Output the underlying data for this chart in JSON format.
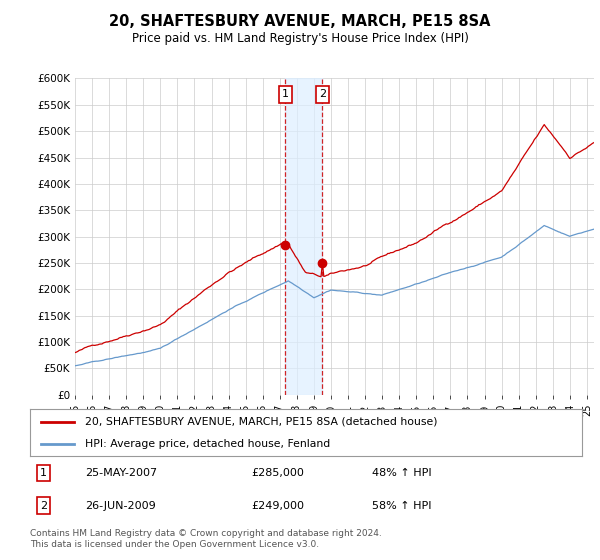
{
  "title": "20, SHAFTESBURY AVENUE, MARCH, PE15 8SA",
  "subtitle": "Price paid vs. HM Land Registry's House Price Index (HPI)",
  "ylabel_ticks": [
    "£0",
    "£50K",
    "£100K",
    "£150K",
    "£200K",
    "£250K",
    "£300K",
    "£350K",
    "£400K",
    "£450K",
    "£500K",
    "£550K",
    "£600K"
  ],
  "ytick_values": [
    0,
    50000,
    100000,
    150000,
    200000,
    250000,
    300000,
    350000,
    400000,
    450000,
    500000,
    550000,
    600000
  ],
  "sale1_date_idx": 148,
  "sale1_price": 285000,
  "sale1_label": "1",
  "sale2_date_idx": 174,
  "sale2_price": 249000,
  "sale2_label": "2",
  "line1_color": "#cc0000",
  "line2_color": "#6699cc",
  "legend1": "20, SHAFTESBURY AVENUE, MARCH, PE15 8SA (detached house)",
  "legend2": "HPI: Average price, detached house, Fenland",
  "footer": "Contains HM Land Registry data © Crown copyright and database right 2024.\nThis data is licensed under the Open Government Licence v3.0.",
  "background_color": "#ffffff",
  "grid_color": "#cccccc",
  "shade_color": "#ddeeff"
}
